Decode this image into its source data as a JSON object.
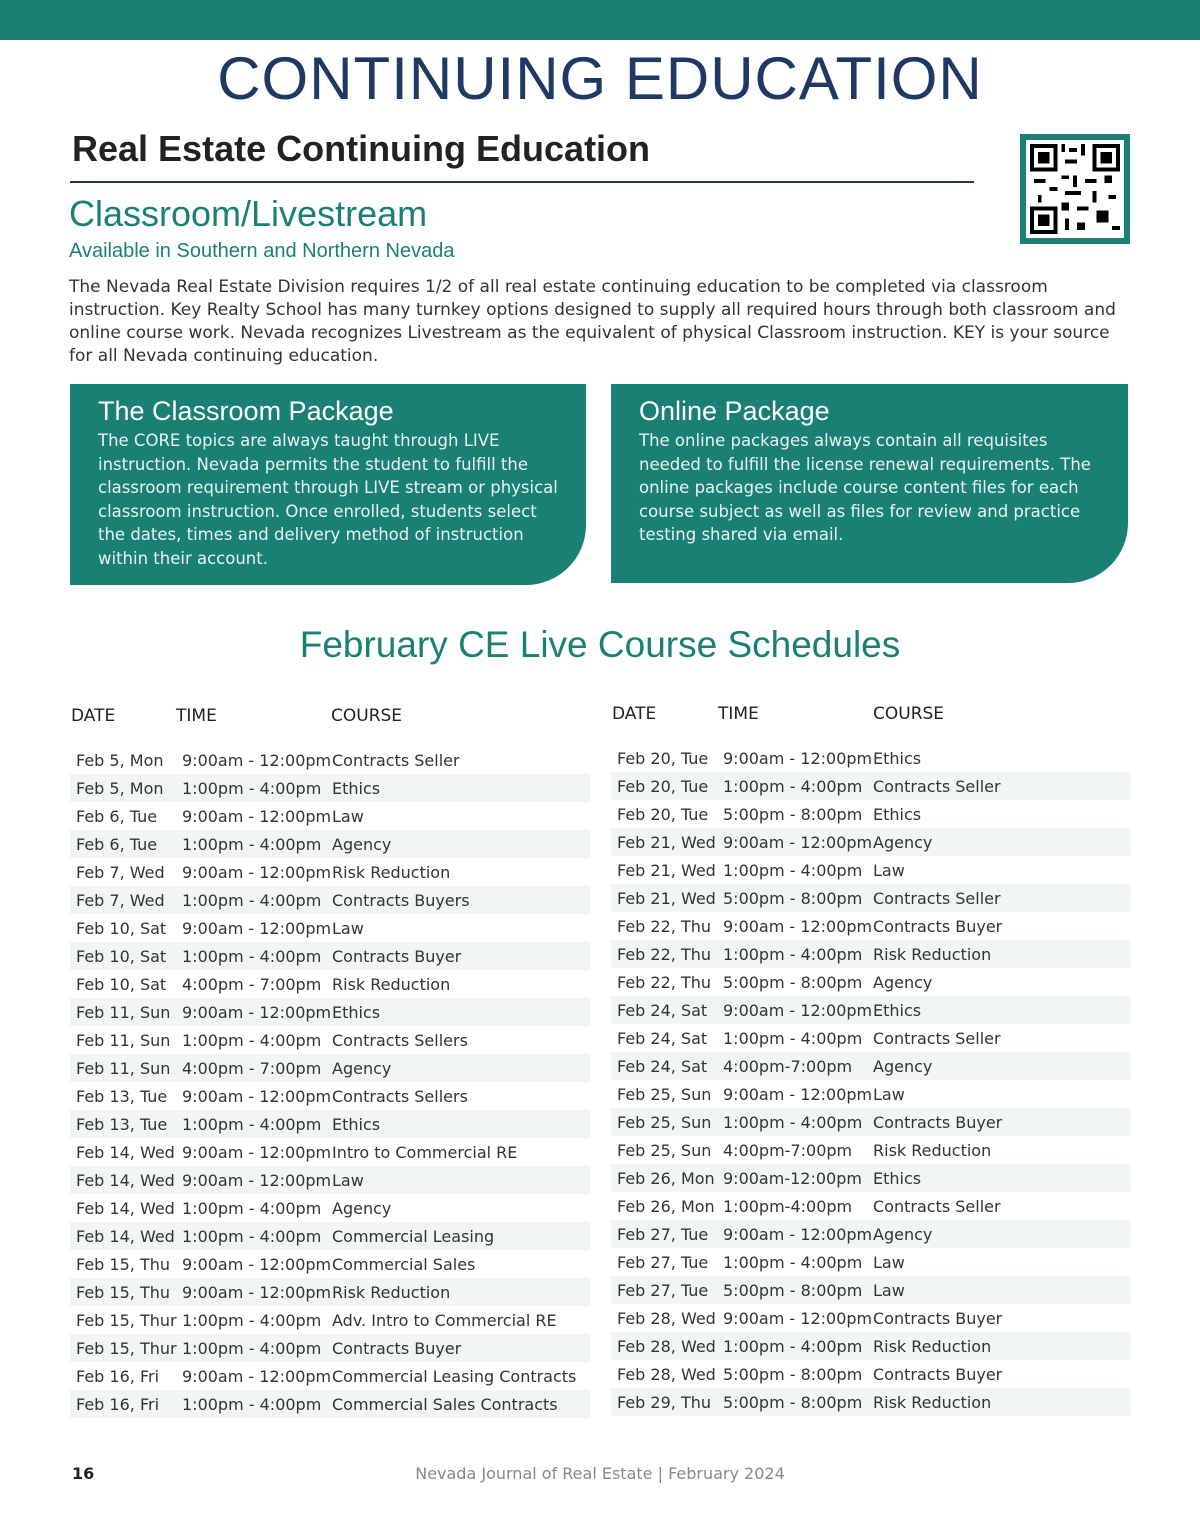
{
  "header": {
    "title": "CONTINUING EDUCATION",
    "subtitle": "Real Estate Continuing Education",
    "section": "Classroom/Livestream",
    "availability": "Available in Southern and Northern Nevada"
  },
  "intro": "The Nevada Real Estate Division requires 1/2 of all real estate continuing education to be completed via classroom instruction. Key Realty School has many turnkey options designed to supply all required hours through both classroom and online course work. Nevada recognizes Livestream as the equivalent of physical Classroom instruction. KEY is your source for all Nevada continuing education.",
  "cards": [
    {
      "title": "The Classroom Package",
      "body": "The CORE topics are always taught through LIVE instruction. Nevada permits the student to fulfill the classroom requirement through LIVE stream or physical classroom instruction. Once enrolled, students select the dates, times and delivery method of instruction within their account."
    },
    {
      "title": "Online Package",
      "body": "The online packages always contain all requisites needed to fulfill the license renewal requirements. The online packages include course content files for each course subject as well as files for review and practice testing shared via email."
    }
  ],
  "schedule_title": "February CE Live Course Schedules",
  "columns": [
    "DATE",
    "TIME",
    "COURSE"
  ],
  "left_rows": [
    [
      "Feb 5, Mon",
      "9:00am - 12:00pm",
      "Contracts Seller"
    ],
    [
      "Feb 5, Mon",
      "1:00pm - 4:00pm",
      "Ethics"
    ],
    [
      "Feb 6, Tue",
      "9:00am - 12:00pm",
      "Law"
    ],
    [
      "Feb 6, Tue",
      "1:00pm - 4:00pm",
      "Agency"
    ],
    [
      "Feb 7, Wed",
      "9:00am - 12:00pm",
      "Risk Reduction"
    ],
    [
      "Feb 7, Wed",
      "1:00pm - 4:00pm",
      "Contracts Buyers"
    ],
    [
      "Feb 10, Sat",
      "9:00am - 12:00pm",
      "Law"
    ],
    [
      "Feb 10, Sat",
      "1:00pm - 4:00pm",
      "Contracts Buyer"
    ],
    [
      "Feb 10, Sat",
      "4:00pm - 7:00pm",
      "Risk Reduction"
    ],
    [
      "Feb 11, Sun",
      "9:00am - 12:00pm",
      "Ethics"
    ],
    [
      "Feb 11, Sun",
      "1:00pm - 4:00pm",
      "Contracts Sellers"
    ],
    [
      "Feb 11, Sun",
      "4:00pm - 7:00pm",
      "Agency"
    ],
    [
      "Feb 13, Tue",
      "9:00am - 12:00pm",
      "Contracts Sellers"
    ],
    [
      "Feb 13, Tue",
      "1:00pm - 4:00pm",
      "Ethics"
    ],
    [
      "Feb 14, Wed",
      "9:00am - 12:00pm",
      "Intro to Commercial RE"
    ],
    [
      "Feb 14, Wed",
      "9:00am - 12:00pm",
      "Law"
    ],
    [
      "Feb 14, Wed",
      "1:00pm - 4:00pm",
      "Agency"
    ],
    [
      "Feb 14, Wed",
      "1:00pm - 4:00pm",
      "Commercial Leasing"
    ],
    [
      "Feb 15, Thu",
      "9:00am - 12:00pm",
      "Commercial Sales"
    ],
    [
      "Feb 15, Thu",
      "9:00am - 12:00pm",
      "Risk Reduction"
    ],
    [
      "Feb 15, Thur",
      "1:00pm - 4:00pm",
      "Adv. Intro to Commercial RE"
    ],
    [
      "Feb 15, Thur",
      "1:00pm - 4:00pm",
      "Contracts Buyer"
    ],
    [
      "Feb 16, Fri",
      "9:00am - 12:00pm",
      "Commercial Leasing Contracts"
    ],
    [
      "Feb 16, Fri",
      "1:00pm - 4:00pm",
      "Commercial Sales Contracts"
    ]
  ],
  "right_rows": [
    [
      "Feb 20, Tue",
      "9:00am - 12:00pm",
      "Ethics"
    ],
    [
      "Feb 20, Tue",
      "1:00pm - 4:00pm",
      "Contracts Seller"
    ],
    [
      "Feb 20, Tue",
      "5:00pm - 8:00pm",
      "Ethics"
    ],
    [
      "Feb 21, Wed",
      "9:00am - 12:00pm",
      "Agency"
    ],
    [
      "Feb 21, Wed",
      "1:00pm - 4:00pm",
      "Law"
    ],
    [
      "Feb 21, Wed",
      "5:00pm - 8:00pm",
      "Contracts Seller"
    ],
    [
      "Feb 22, Thu",
      "9:00am - 12:00pm",
      "Contracts Buyer"
    ],
    [
      "Feb 22, Thu",
      "1:00pm - 4:00pm",
      "Risk Reduction"
    ],
    [
      "Feb 22, Thu",
      "5:00pm - 8:00pm",
      "Agency"
    ],
    [
      "Feb 24, Sat",
      "9:00am - 12:00pm",
      "Ethics"
    ],
    [
      "Feb 24, Sat",
      "1:00pm - 4:00pm",
      "Contracts Seller"
    ],
    [
      "Feb 24, Sat",
      "4:00pm-7:00pm",
      "Agency"
    ],
    [
      "Feb 25, Sun",
      "9:00am - 12:00pm",
      "Law"
    ],
    [
      "Feb 25, Sun",
      "1:00pm - 4:00pm",
      "Contracts Buyer"
    ],
    [
      "Feb 25, Sun",
      "4:00pm-7:00pm",
      "Risk Reduction"
    ],
    [
      "Feb 26, Mon",
      "9:00am-12:00pm",
      "Ethics"
    ],
    [
      "Feb 26, Mon",
      "1:00pm-4:00pm",
      "Contracts Seller"
    ],
    [
      "Feb 27, Tue",
      "9:00am - 12:00pm",
      "Agency"
    ],
    [
      "Feb 27, Tue",
      "1:00pm - 4:00pm",
      "Law"
    ],
    [
      "Feb 27, Tue",
      "5:00pm - 8:00pm",
      "Law"
    ],
    [
      "Feb 28, Wed",
      "9:00am - 12:00pm",
      "Contracts Buyer"
    ],
    [
      "Feb 28, Wed",
      "1:00pm - 4:00pm",
      "Risk Reduction"
    ],
    [
      "Feb 28, Wed",
      "5:00pm - 8:00pm",
      "Contracts Buyer"
    ],
    [
      "Feb 29, Thu",
      "5:00pm - 8:00pm",
      "Risk Reduction"
    ]
  ],
  "footer": {
    "page": "16",
    "publication": "Nevada Journal of Real Estate | February 2024"
  },
  "colors": {
    "teal": "#1b8074",
    "navy": "#1f3864",
    "stripe": "#eff6f5"
  }
}
